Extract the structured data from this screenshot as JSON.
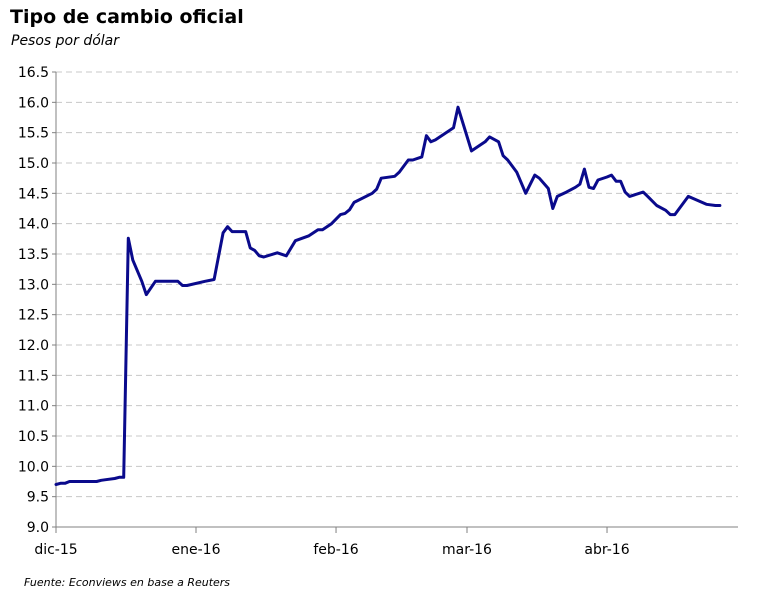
{
  "chart_data": {
    "type": "line",
    "title": "Tipo de cambio oficial",
    "subtitle": "Pesos por dólar",
    "source": "Fuente: Econviews en base a Reuters",
    "ylim": [
      9.0,
      16.5
    ],
    "y_ticks": [
      "9.0",
      "9.5",
      "10.0",
      "10.5",
      "11.0",
      "11.5",
      "12.0",
      "12.5",
      "13.0",
      "13.5",
      "14.0",
      "14.5",
      "15.0",
      "15.5",
      "16.0",
      "16.5"
    ],
    "x_ticks": [
      {
        "label": "dic-15",
        "day": 0
      },
      {
        "label": "ene-16",
        "day": 31
      },
      {
        "label": "feb-16",
        "day": 62
      },
      {
        "label": "mar-16",
        "day": 91
      },
      {
        "label": "abr-16",
        "day": 122
      }
    ],
    "x_range_days": [
      0,
      151
    ],
    "grid": true,
    "line_color": "#0a0a8c",
    "series": [
      {
        "points": [
          [
            0,
            9.7
          ],
          [
            1,
            9.72
          ],
          [
            2,
            9.72
          ],
          [
            3,
            9.75
          ],
          [
            4,
            9.75
          ],
          [
            6,
            9.75
          ],
          [
            7,
            9.75
          ],
          [
            8,
            9.75
          ],
          [
            9,
            9.75
          ],
          [
            10,
            9.77
          ],
          [
            11,
            9.78
          ],
          [
            13,
            9.8
          ],
          [
            14,
            9.82
          ],
          [
            15,
            9.82
          ],
          [
            16,
            13.76
          ],
          [
            17,
            13.4
          ],
          [
            19,
            13.05
          ],
          [
            20,
            12.83
          ],
          [
            22,
            13.05
          ],
          [
            23,
            13.05
          ],
          [
            24,
            13.05
          ],
          [
            27,
            13.05
          ],
          [
            28,
            12.98
          ],
          [
            29,
            12.98
          ],
          [
            33,
            13.05
          ],
          [
            35,
            13.08
          ],
          [
            37,
            13.85
          ],
          [
            38,
            13.95
          ],
          [
            39,
            13.87
          ],
          [
            42,
            13.87
          ],
          [
            43,
            13.6
          ],
          [
            44,
            13.56
          ],
          [
            45,
            13.47
          ],
          [
            46,
            13.45
          ],
          [
            49,
            13.52
          ],
          [
            51,
            13.47
          ],
          [
            53,
            13.72
          ],
          [
            56,
            13.8
          ],
          [
            58,
            13.9
          ],
          [
            59,
            13.9
          ],
          [
            61,
            14.0
          ],
          [
            63,
            14.15
          ],
          [
            64,
            14.17
          ],
          [
            65,
            14.23
          ],
          [
            66,
            14.35
          ],
          [
            70,
            14.5
          ],
          [
            71,
            14.57
          ],
          [
            72,
            14.75
          ],
          [
            75,
            14.78
          ],
          [
            76,
            14.85
          ],
          [
            78,
            15.05
          ],
          [
            79,
            15.05
          ],
          [
            81,
            15.1
          ],
          [
            82,
            15.45
          ],
          [
            83,
            15.35
          ],
          [
            84,
            15.38
          ],
          [
            88,
            15.58
          ],
          [
            89,
            15.92
          ],
          [
            92,
            15.2
          ],
          [
            94,
            15.3
          ],
          [
            95,
            15.35
          ],
          [
            96,
            15.43
          ],
          [
            98,
            15.35
          ],
          [
            99,
            15.12
          ],
          [
            100,
            15.05
          ],
          [
            102,
            14.85
          ],
          [
            104,
            14.5
          ],
          [
            106,
            14.8
          ],
          [
            107,
            14.75
          ],
          [
            109,
            14.58
          ],
          [
            110,
            14.25
          ],
          [
            111,
            14.45
          ],
          [
            113,
            14.52
          ],
          [
            115,
            14.6
          ],
          [
            116,
            14.65
          ],
          [
            117,
            14.9
          ],
          [
            118,
            14.6
          ],
          [
            119,
            14.58
          ],
          [
            120,
            14.72
          ],
          [
            122,
            14.77
          ],
          [
            123,
            14.8
          ],
          [
            124,
            14.7
          ],
          [
            125,
            14.7
          ],
          [
            126,
            14.52
          ],
          [
            127,
            14.45
          ],
          [
            130,
            14.52
          ],
          [
            131,
            14.45
          ],
          [
            133,
            14.3
          ],
          [
            135,
            14.22
          ],
          [
            136,
            14.15
          ],
          [
            137,
            14.15
          ],
          [
            140,
            14.45
          ],
          [
            144,
            14.32
          ],
          [
            146,
            14.3
          ],
          [
            147,
            14.3
          ]
        ]
      }
    ]
  }
}
